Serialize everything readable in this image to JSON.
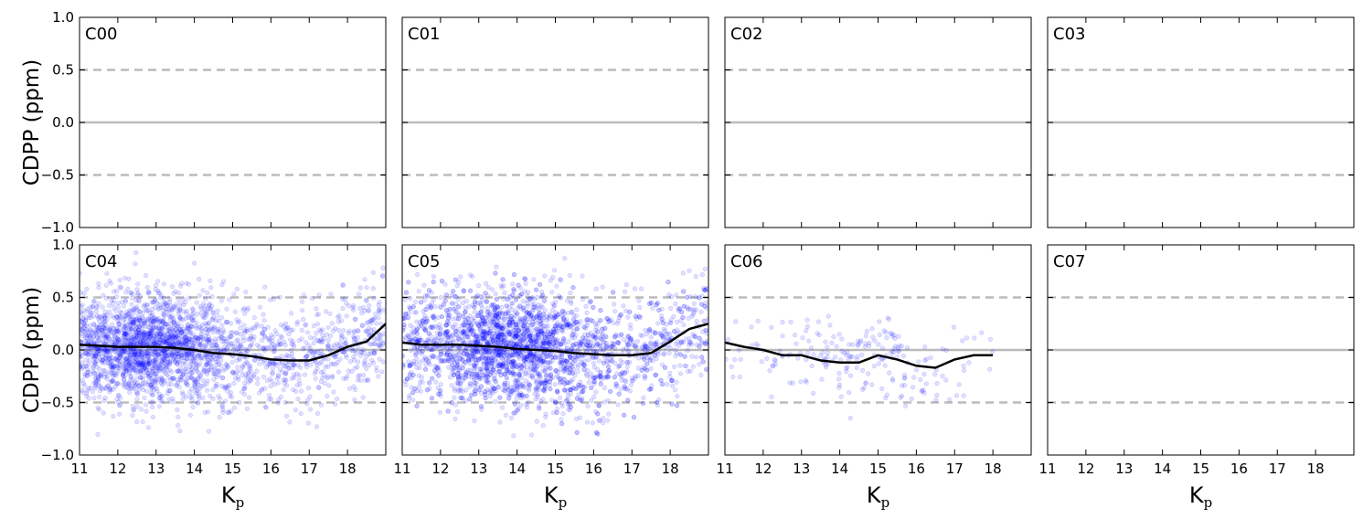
{
  "chart_data": {
    "type": "scatter",
    "layout": "2x4 grid, shared axes",
    "ylabel": "CDPP (ppm)",
    "xlabel": "K",
    "xlabel_subscript": "p",
    "xlim": [
      11,
      19
    ],
    "ylim": [
      -1.0,
      1.0
    ],
    "xticks": [
      "11",
      "12",
      "13",
      "14",
      "15",
      "16",
      "17",
      "18"
    ],
    "yticks": [
      "1.0",
      "0.5",
      "0.0",
      "−0.5",
      "−1.0"
    ],
    "reference_lines": {
      "solid": 0.0,
      "dashed": [
        0.5,
        -0.5
      ],
      "color": "#bbbbbb"
    },
    "colors": {
      "points": "#0000ff",
      "trend": "#000000"
    },
    "panels": [
      {
        "label": "C00",
        "has_points": false,
        "trend": []
      },
      {
        "label": "C01",
        "has_points": false,
        "trend": []
      },
      {
        "label": "C02",
        "has_points": false,
        "trend": []
      },
      {
        "label": "C03",
        "has_points": false,
        "trend": []
      },
      {
        "label": "C04",
        "has_points": true,
        "scatter": {
          "n": 2600,
          "x_range": [
            11,
            19
          ],
          "center_x": 12.7,
          "spread_x": 1.8,
          "spread_y": 0.25
        },
        "trend": [
          [
            11.0,
            0.05
          ],
          [
            11.5,
            0.04
          ],
          [
            12.0,
            0.03
          ],
          [
            12.5,
            0.03
          ],
          [
            13.0,
            0.03
          ],
          [
            13.5,
            0.02
          ],
          [
            14.0,
            0.0
          ],
          [
            14.5,
            -0.03
          ],
          [
            15.0,
            -0.04
          ],
          [
            15.5,
            -0.06
          ],
          [
            16.0,
            -0.09
          ],
          [
            16.5,
            -0.1
          ],
          [
            17.0,
            -0.1
          ],
          [
            17.5,
            -0.05
          ],
          [
            18.0,
            0.03
          ],
          [
            18.5,
            0.08
          ],
          [
            19.0,
            0.25
          ]
        ]
      },
      {
        "label": "C05",
        "has_points": true,
        "scatter": {
          "n": 3000,
          "x_range": [
            11,
            19
          ],
          "center_x": 13.8,
          "spread_x": 2.0,
          "spread_y": 0.27
        },
        "trend": [
          [
            11.0,
            0.07
          ],
          [
            11.5,
            0.05
          ],
          [
            12.0,
            0.05
          ],
          [
            12.5,
            0.05
          ],
          [
            13.0,
            0.04
          ],
          [
            13.5,
            0.03
          ],
          [
            14.0,
            0.01
          ],
          [
            14.5,
            0.0
          ],
          [
            15.0,
            -0.01
          ],
          [
            15.5,
            -0.03
          ],
          [
            16.0,
            -0.04
          ],
          [
            16.5,
            -0.05
          ],
          [
            17.0,
            -0.05
          ],
          [
            17.5,
            -0.03
          ],
          [
            18.0,
            0.08
          ],
          [
            18.5,
            0.2
          ],
          [
            19.0,
            0.25
          ]
        ]
      },
      {
        "label": "C06",
        "has_points": true,
        "scatter": {
          "n": 220,
          "x_range": [
            11,
            18
          ],
          "center_x": 14.5,
          "spread_x": 1.8,
          "spread_y": 0.2
        },
        "trend": [
          [
            11.0,
            0.07
          ],
          [
            11.5,
            0.03
          ],
          [
            12.0,
            0.0
          ],
          [
            12.5,
            -0.05
          ],
          [
            13.0,
            -0.05
          ],
          [
            13.5,
            -0.1
          ],
          [
            14.0,
            -0.12
          ],
          [
            14.5,
            -0.12
          ],
          [
            15.0,
            -0.05
          ],
          [
            15.5,
            -0.09
          ],
          [
            16.0,
            -0.15
          ],
          [
            16.5,
            -0.17
          ],
          [
            17.0,
            -0.09
          ],
          [
            17.5,
            -0.05
          ],
          [
            18.0,
            -0.05
          ]
        ]
      },
      {
        "label": "C07",
        "has_points": false,
        "trend": []
      }
    ]
  }
}
